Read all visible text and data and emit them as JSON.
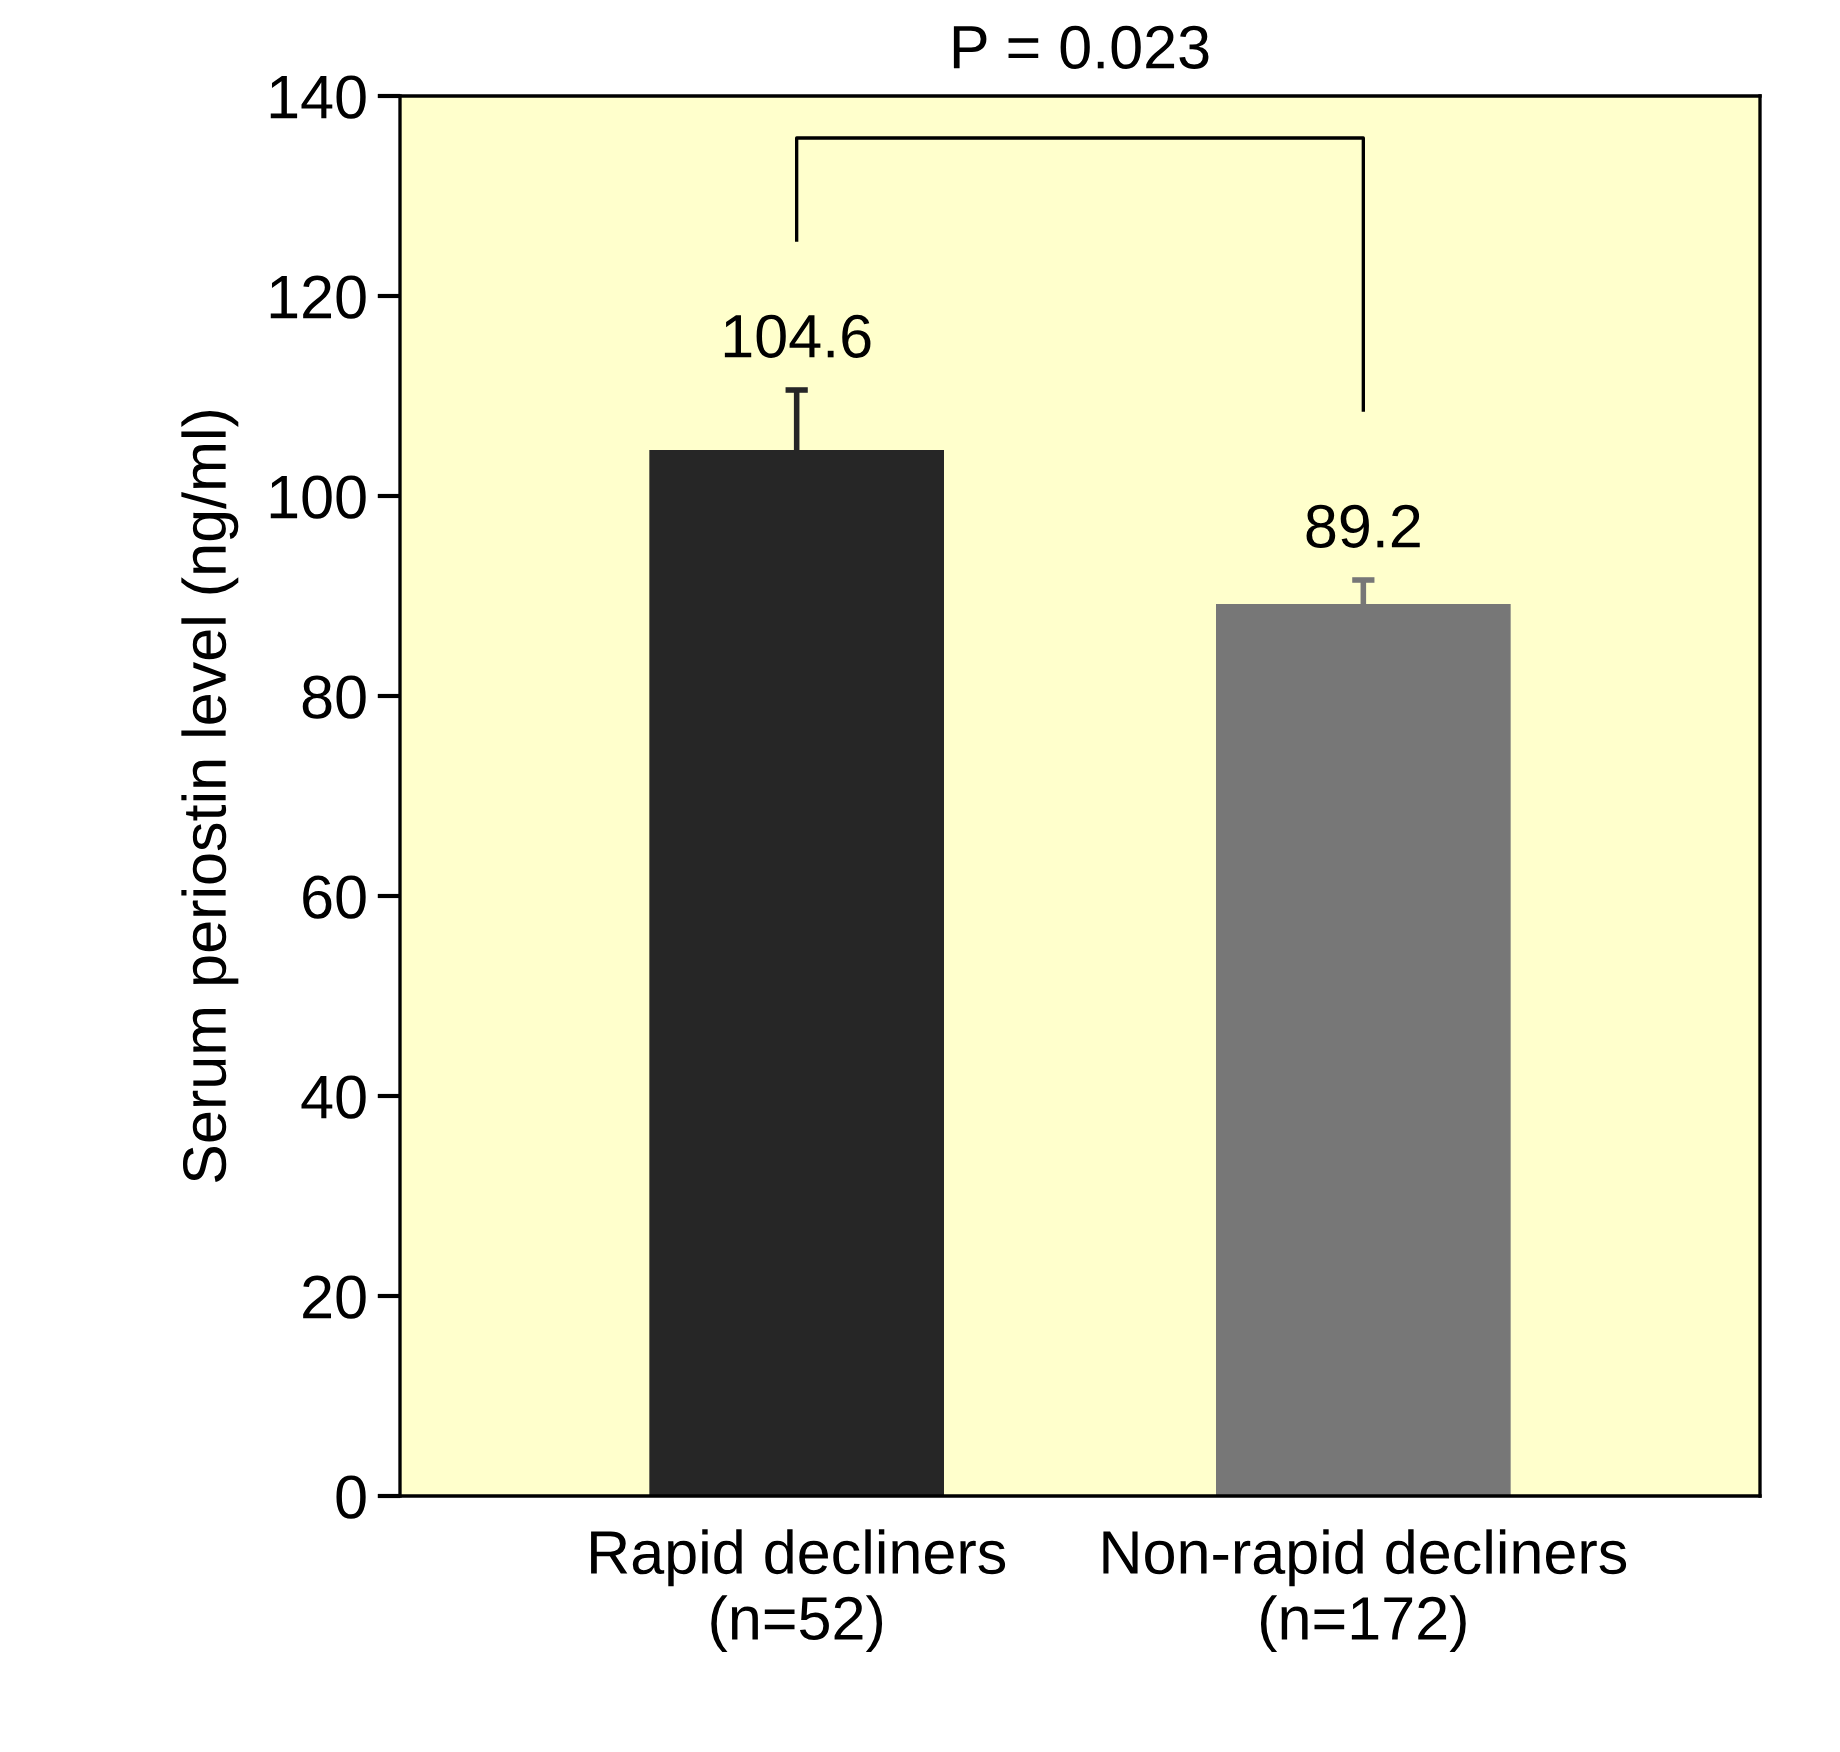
{
  "chart_data": {
    "type": "bar",
    "categories": [
      "Rapid decliners\n(n=52)",
      "Non-rapid decliners\n(n=172)"
    ],
    "values": [
      104.6,
      89.2
    ],
    "errors": [
      6,
      2.4
    ],
    "colors": [
      "#262626",
      "#777777"
    ],
    "ylabel": "Serum periostin level (ng/ml)",
    "ylim": [
      0,
      140
    ],
    "yticks": [
      0,
      20,
      40,
      60,
      80,
      100,
      120,
      140
    ],
    "data_labels": true,
    "annotations": [
      "P = 0.023"
    ],
    "grid": false
  }
}
